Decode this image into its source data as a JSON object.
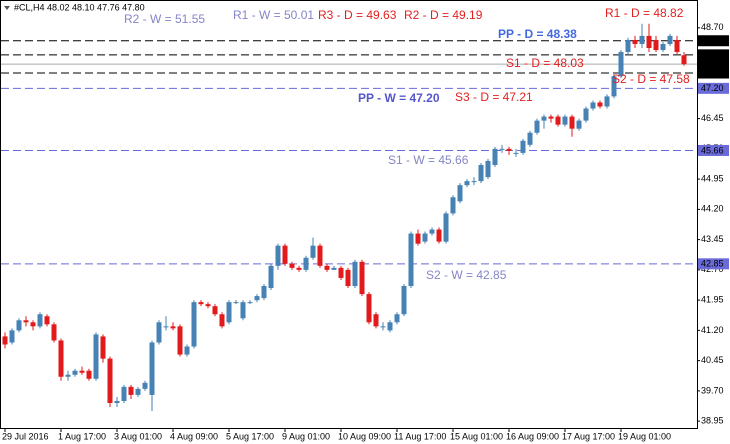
{
  "chart_data": {
    "type": "candlestick",
    "title": "#CL,H4  48.02 48.10 47.76 47.80",
    "categories": [
      "29 Jul 2016",
      null,
      null,
      null,
      null,
      null,
      null,
      null,
      "1 Aug 17:00",
      null,
      null,
      null,
      null,
      null,
      null,
      null,
      "3 Aug 01:00",
      null,
      null,
      null,
      null,
      null,
      null,
      null,
      "4 Aug 09:00",
      null,
      null,
      null,
      null,
      null,
      null,
      null,
      "5 Aug 17:00",
      null,
      null,
      null,
      null,
      null,
      null,
      null,
      "9 Aug 01:00",
      null,
      null,
      null,
      null,
      null,
      null,
      null,
      "10 Aug 09:00",
      null,
      null,
      null,
      null,
      null,
      null,
      null,
      "11 Aug 17:00",
      null,
      null,
      null,
      null,
      null,
      null,
      null,
      "15 Aug 01:00",
      null,
      null,
      null,
      null,
      null,
      null,
      null,
      "16 Aug 09:00",
      null,
      null,
      null,
      null,
      null,
      null,
      null,
      "17 Aug 17:00",
      null,
      null,
      null,
      null,
      null,
      null,
      null,
      "19 Aug 01:00",
      null,
      null,
      null,
      null,
      null,
      null,
      null,
      null,
      null
    ],
    "open": [
      41.05,
      40.9,
      41.2,
      41.45,
      41.4,
      41.3,
      41.55,
      41.35,
      40.95,
      40.05,
      40.1,
      40.2,
      40.2,
      40.0,
      41.05,
      40.5,
      39.4,
      39.45,
      39.8,
      39.6,
      39.75,
      39.6,
      40.9,
      41.3,
      41.3,
      41.3,
      40.6,
      40.8,
      41.9,
      41.85,
      41.8,
      41.6,
      41.4,
      41.9,
      41.5,
      41.9,
      41.95,
      42.0,
      42.25,
      42.8,
      43.3,
      42.85,
      42.75,
      42.7,
      43.0,
      43.3,
      42.8,
      42.7,
      42.75,
      42.7,
      42.3,
      42.9,
      42.1,
      41.6,
      41.3,
      41.2,
      41.4,
      41.6,
      42.3,
      43.6,
      43.4,
      43.6,
      43.7,
      43.4,
      44.1,
      44.4,
      44.8,
      44.9,
      44.9,
      45.0,
      45.3,
      45.7,
      45.7,
      45.6,
      45.6,
      45.8,
      46.1,
      46.4,
      46.5,
      46.5,
      46.3,
      46.5,
      46.2,
      46.4,
      46.7,
      46.85,
      46.75,
      47.0,
      47.5,
      48.1,
      48.4,
      48.3,
      48.5,
      48.4,
      48.15,
      48.3,
      48.4,
      48.02
    ],
    "high": [
      41.15,
      41.25,
      41.5,
      41.55,
      41.45,
      41.65,
      41.6,
      41.4,
      41.0,
      40.2,
      40.25,
      40.3,
      40.25,
      41.15,
      41.1,
      40.55,
      39.55,
      39.85,
      39.85,
      39.8,
      39.95,
      40.95,
      41.45,
      41.55,
      41.4,
      41.35,
      40.85,
      41.95,
      41.95,
      41.9,
      41.85,
      41.65,
      41.95,
      41.95,
      41.95,
      41.95,
      42.1,
      42.35,
      42.85,
      43.35,
      43.35,
      42.9,
      42.8,
      43.05,
      43.5,
      43.35,
      42.85,
      42.8,
      42.8,
      42.75,
      42.95,
      42.95,
      42.15,
      41.65,
      41.4,
      41.45,
      41.65,
      42.35,
      43.65,
      43.7,
      43.65,
      43.75,
      43.75,
      44.15,
      44.55,
      44.85,
      44.95,
      45.0,
      45.35,
      45.45,
      45.75,
      45.8,
      45.75,
      45.7,
      45.95,
      46.15,
      46.45,
      46.55,
      46.55,
      46.55,
      46.55,
      46.55,
      46.45,
      46.75,
      46.9,
      46.9,
      47.05,
      47.55,
      48.15,
      48.45,
      48.5,
      48.8,
      48.8,
      48.5,
      48.35,
      48.55,
      48.5,
      48.1
    ],
    "low": [
      40.75,
      40.85,
      41.15,
      41.3,
      41.2,
      41.25,
      41.3,
      40.9,
      39.95,
      39.95,
      40.05,
      40.1,
      39.95,
      39.95,
      40.4,
      39.3,
      39.3,
      39.4,
      39.5,
      39.55,
      39.7,
      39.2,
      40.85,
      41.2,
      41.2,
      40.55,
      40.55,
      40.75,
      41.8,
      41.75,
      41.55,
      41.25,
      41.35,
      41.85,
      41.45,
      41.85,
      41.9,
      41.95,
      42.2,
      42.7,
      42.8,
      42.7,
      42.65,
      42.65,
      42.95,
      42.75,
      42.65,
      42.7,
      42.45,
      42.25,
      42.25,
      42.05,
      41.35,
      41.25,
      41.2,
      41.15,
      41.35,
      41.55,
      42.25,
      43.3,
      43.35,
      43.55,
      43.35,
      43.35,
      44.05,
      44.35,
      44.75,
      44.8,
      44.85,
      44.95,
      45.25,
      45.6,
      45.55,
      45.5,
      45.55,
      45.75,
      46.05,
      46.2,
      46.35,
      46.25,
      46.25,
      46.0,
      46.15,
      46.35,
      46.65,
      46.7,
      46.7,
      46.95,
      47.45,
      48.05,
      48.2,
      48.2,
      48.1,
      48.1,
      48.1,
      48.25,
      48.05,
      47.76
    ],
    "close": [
      40.85,
      41.2,
      41.45,
      41.4,
      41.3,
      41.6,
      41.35,
      40.95,
      40.05,
      40.1,
      40.2,
      40.15,
      40.0,
      41.1,
      40.5,
      39.4,
      39.45,
      39.8,
      39.6,
      39.75,
      39.9,
      40.9,
      41.4,
      41.3,
      41.25,
      40.6,
      40.8,
      41.9,
      41.85,
      41.8,
      41.6,
      41.3,
      41.9,
      41.9,
      41.9,
      41.9,
      42.05,
      42.3,
      42.8,
      43.3,
      42.85,
      42.75,
      42.7,
      43.0,
      43.3,
      42.8,
      42.7,
      42.75,
      42.5,
      42.3,
      42.9,
      42.1,
      41.4,
      41.3,
      41.3,
      41.4,
      41.6,
      42.3,
      43.6,
      43.35,
      43.6,
      43.7,
      43.4,
      44.1,
      44.5,
      44.8,
      44.9,
      44.9,
      45.3,
      45.4,
      45.7,
      45.7,
      45.65,
      45.6,
      45.9,
      46.1,
      46.4,
      46.5,
      46.45,
      46.3,
      46.5,
      46.2,
      46.4,
      46.7,
      46.85,
      46.75,
      47.0,
      47.5,
      48.1,
      48.4,
      48.3,
      48.5,
      48.2,
      48.15,
      48.3,
      48.5,
      48.1,
      47.8
    ],
    "up_color": "#4682b4",
    "down_color": "#e31a1c",
    "ylim": [
      38.78,
      49.39
    ],
    "yticks": [
      {
        "value": 48.7,
        "label": "48.70"
      },
      47.95,
      {
        "value": 47.2,
        "label": "47.20"
      },
      46.45,
      {
        "value": 45.7,
        "label": "45.70"
      },
      44.95,
      {
        "value": 44.2,
        "label": "44.20"
      },
      43.45,
      {
        "value": 42.7,
        "label": "42.70"
      },
      41.95,
      {
        "value": 41.2,
        "label": "41.20"
      },
      40.45,
      {
        "value": 39.7,
        "label": "39.70"
      },
      38.95
    ],
    "levels": [
      {
        "value": 48.38,
        "color": "#000000",
        "style": "dashed"
      },
      {
        "value": 48.03,
        "color": "#000000",
        "style": "dashed"
      },
      {
        "value": {
          "value": 47.8,
          "label": "47.80"
        },
        "color": "#000000",
        "style": "solid"
      },
      {
        "value": 47.58,
        "color": "#000000",
        "style": "dashed"
      },
      {
        "value": {
          "value": 47.2,
          "label": "47.20"
        },
        "color": "#6a6ad8",
        "style": "dashed"
      },
      {
        "value": 45.66,
        "color": "#6a6ad8",
        "style": "dashed"
      },
      {
        "value": 42.85,
        "color": "#6a6ad8",
        "style": "dashed"
      }
    ],
    "annotations": [
      {
        "text": "R2 - W = 51.55",
        "color": "#8585c8",
        "bold": false
      },
      {
        "text": "R1 - W = 50.01",
        "color": "#8585c8",
        "bold": false
      },
      {
        "text": "R3 - D = 49.63",
        "color": "#e32020",
        "bold": false
      },
      {
        "text": "R2 - D = 49.19",
        "color": "#e32020",
        "bold": false
      },
      {
        "text": "R1 - D = 48.82",
        "color": "#e32020",
        "bold": false
      },
      {
        "text": "PP - D = 48.38",
        "color": "#4169e1",
        "bold": true
      },
      {
        "text": "S1 - D = 48.03",
        "color": "#e32020",
        "bold": false
      },
      {
        "text": "S2 - D = 47.58",
        "color": "#e32020",
        "bold": false
      },
      {
        "text": "PP - W = 47.20",
        "color": "#5555cc",
        "bold": true
      },
      {
        "text": "S3 - D = 47.21",
        "color": "#e32020",
        "bold": false
      },
      {
        "text": "S1 - W = 45.66",
        "color": "#8585c8",
        "bold": false
      },
      {
        "text": "S2 - W = 42.85",
        "color": "#8585c8",
        "bold": false
      }
    ]
  }
}
